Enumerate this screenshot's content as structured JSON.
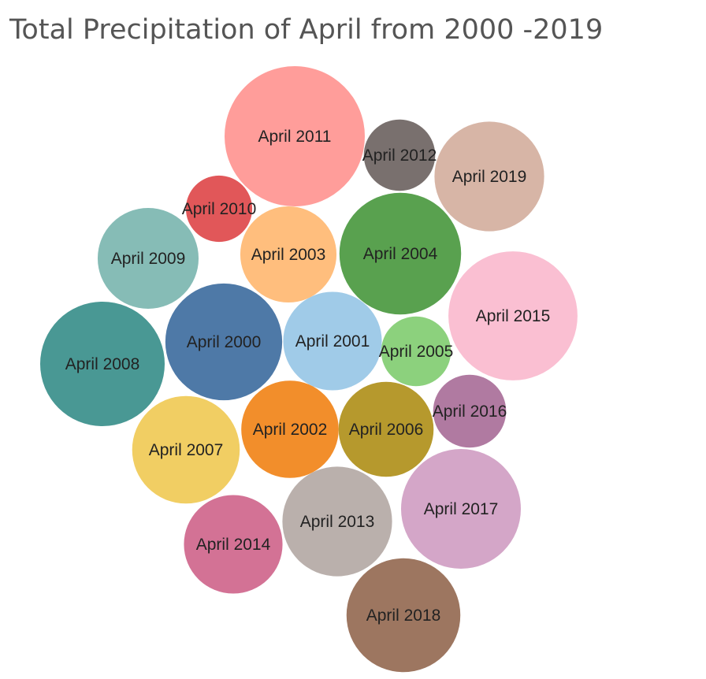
{
  "chart_data": {
    "type": "bubble",
    "title": "Total Precipitation of April from 2000 -2019",
    "series": [
      {
        "label": "April 2000",
        "value": 5.9,
        "color": "#4e79a7"
      },
      {
        "label": "April 2001",
        "value": 4.2,
        "color": "#a0cbe8"
      },
      {
        "label": "April 2002",
        "value": 4.1,
        "color": "#f28e2b"
      },
      {
        "label": "April 2003",
        "value": 4.0,
        "color": "#ffbe7d"
      },
      {
        "label": "April 2004",
        "value": 6.4,
        "color": "#59a14f"
      },
      {
        "label": "April 2005",
        "value": 2.1,
        "color": "#8cd17d"
      },
      {
        "label": "April 2006",
        "value": 3.9,
        "color": "#b6992d"
      },
      {
        "label": "April 2007",
        "value": 5.0,
        "color": "#f1ce63"
      },
      {
        "label": "April 2008",
        "value": 6.7,
        "color": "#499894"
      },
      {
        "label": "April 2009",
        "value": 4.4,
        "color": "#86bcb6"
      },
      {
        "label": "April 2010",
        "value": 1.9,
        "color": "#e15759"
      },
      {
        "label": "April 2011",
        "value": 8.5,
        "color": "#ff9d9a"
      },
      {
        "label": "April 2012",
        "value": 2.2,
        "color": "#79706e"
      },
      {
        "label": "April 2013",
        "value": 5.2,
        "color": "#bab0ac"
      },
      {
        "label": "April 2014",
        "value": 4.2,
        "color": "#d37295"
      },
      {
        "label": "April 2015",
        "value": 7.2,
        "color": "#fabfd2"
      },
      {
        "label": "April 2016",
        "value": 2.3,
        "color": "#b07aa1"
      },
      {
        "label": "April 2017",
        "value": 6.2,
        "color": "#d4a6c8"
      },
      {
        "label": "April 2018",
        "value": 5.6,
        "color": "#9d7660"
      },
      {
        "label": "April 2019",
        "value": 5.2,
        "color": "#d7b5a6"
      }
    ]
  }
}
